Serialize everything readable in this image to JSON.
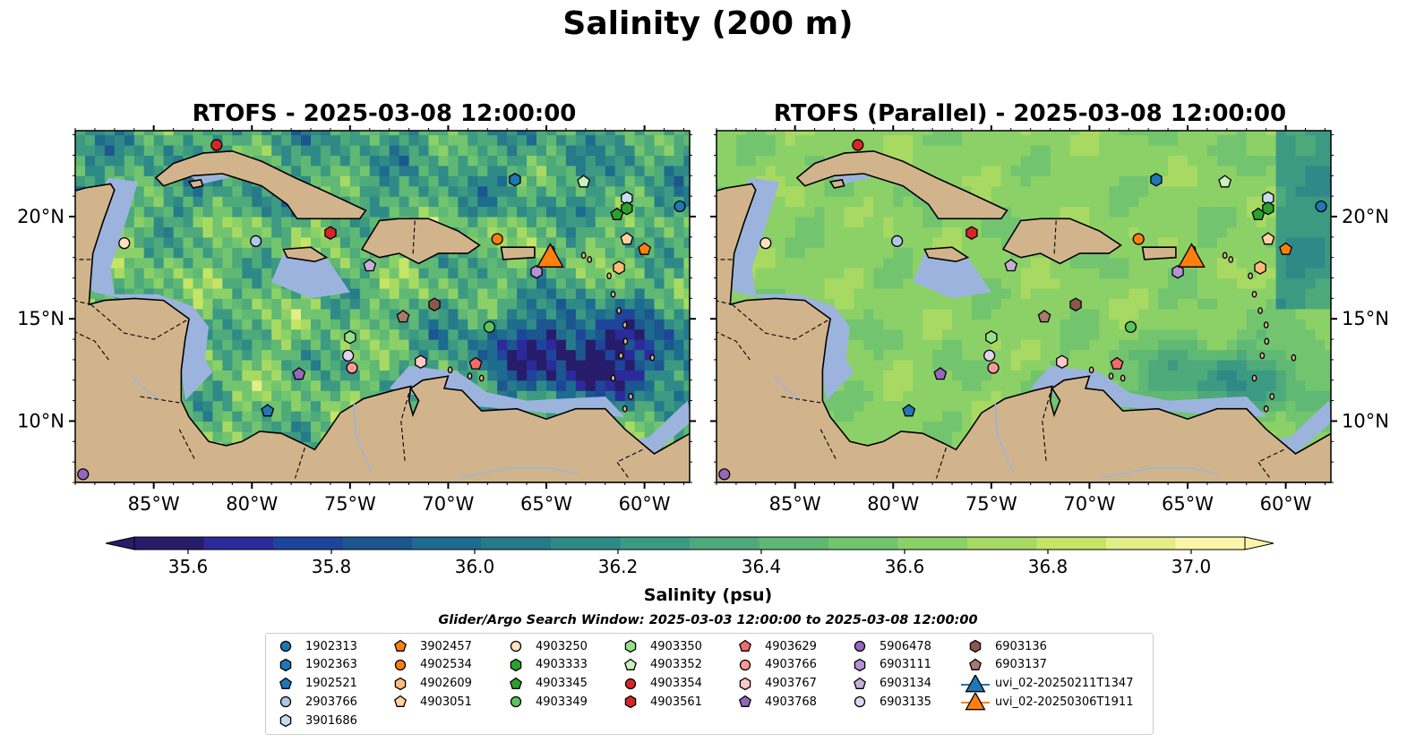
{
  "figure": {
    "suptitle": "Salinity (200 m)",
    "panels": [
      {
        "title": "RTOFS - 2025-03-08 12:00:00",
        "variant": "rtofs"
      },
      {
        "title": "RTOFS (Parallel) - 2025-03-08 12:00:00",
        "variant": "parallel"
      }
    ],
    "longitude_ticks": [
      "85°W",
      "80°W",
      "75°W",
      "70°W",
      "65°W",
      "60°W"
    ],
    "latitude_ticks": [
      "20°N",
      "15°N",
      "10°N"
    ],
    "colors": {
      "land": "#d2b48c",
      "shelf": "#9cb4dd",
      "coastline": "#000000",
      "borders": "#000000",
      "rivers": "#9cb4dd"
    }
  },
  "colorbar": {
    "label": "Salinity (psu)",
    "min": 35.6,
    "max": 37.0,
    "tick_labels": [
      "35.6",
      "35.8",
      "36.0",
      "36.2",
      "36.4",
      "36.6",
      "36.8",
      "37.0"
    ],
    "extend": "both",
    "colormap": [
      "#271c6a",
      "#2c2a9a",
      "#1f449b",
      "#1c568f",
      "#1d6c8f",
      "#267a8a",
      "#2f8a87",
      "#3c9a82",
      "#4ea97b",
      "#5fb874",
      "#72c56e",
      "#8cd167",
      "#a8da63",
      "#c6e466",
      "#e4ee88",
      "#fbf5a9"
    ]
  },
  "search_window": "Glider/Argo Search Window: 2025-03-03 12:00:00 to 2025-03-08 12:00:00",
  "legend": [
    {
      "label": "1902313",
      "marker": "circle",
      "color": "#1f77b4"
    },
    {
      "label": "1902363",
      "marker": "hexagon",
      "color": "#1f77b4"
    },
    {
      "label": "1902521",
      "marker": "pentagon",
      "color": "#1f77b4"
    },
    {
      "label": "2903766",
      "marker": "circle",
      "color": "#aec7e8"
    },
    {
      "label": "3901686",
      "marker": "hexagon",
      "color": "#c6dbef"
    },
    {
      "label": "3902457",
      "marker": "pentagon",
      "color": "#ff7f0e"
    },
    {
      "label": "4902534",
      "marker": "circle",
      "color": "#ff7f0e"
    },
    {
      "label": "4902609",
      "marker": "hexagon",
      "color": "#ffbb78"
    },
    {
      "label": "4903051",
      "marker": "pentagon",
      "color": "#ffd1a3"
    },
    {
      "label": "4903250",
      "marker": "circle",
      "color": "#ffe0c2"
    },
    {
      "label": "4903333",
      "marker": "hexagon",
      "color": "#2ca02c"
    },
    {
      "label": "4903345",
      "marker": "pentagon",
      "color": "#2ca02c"
    },
    {
      "label": "4903349",
      "marker": "circle",
      "color": "#5cc45c"
    },
    {
      "label": "4903350",
      "marker": "hexagon",
      "color": "#98df8a"
    },
    {
      "label": "4903352",
      "marker": "pentagon",
      "color": "#c7f0bd"
    },
    {
      "label": "4903354",
      "marker": "circle",
      "color": "#d62728"
    },
    {
      "label": "4903561",
      "marker": "hexagon",
      "color": "#d62728"
    },
    {
      "label": "4903629",
      "marker": "pentagon",
      "color": "#f26b6b"
    },
    {
      "label": "4903766",
      "marker": "circle",
      "color": "#ff9896"
    },
    {
      "label": "4903767",
      "marker": "hexagon",
      "color": "#ffc9c9"
    },
    {
      "label": "4903768",
      "marker": "pentagon",
      "color": "#9467bd"
    },
    {
      "label": "5906478",
      "marker": "circle",
      "color": "#9467bd"
    },
    {
      "label": "6903111",
      "marker": "hexagon",
      "color": "#b392d6"
    },
    {
      "label": "6903134",
      "marker": "pentagon",
      "color": "#c5b0d5"
    },
    {
      "label": "6903135",
      "marker": "circle",
      "color": "#e3d3f2"
    },
    {
      "label": "6903136",
      "marker": "hexagon",
      "color": "#8c564b"
    },
    {
      "label": "6903137",
      "marker": "pentagon",
      "color": "#a9786e"
    },
    {
      "label": "uvi_02-20250211T1347",
      "marker": "triangle",
      "color": "#1f77b4"
    },
    {
      "label": "uvi_02-20250306T1911",
      "marker": "triangle",
      "color": "#ff7f0e"
    }
  ],
  "platform_positions": [
    {
      "id": "1902313",
      "lon": -58.2,
      "lat": 20.5
    },
    {
      "id": "1902363",
      "lon": -66.6,
      "lat": 21.8
    },
    {
      "id": "1902521",
      "lon": -79.2,
      "lat": 10.5
    },
    {
      "id": "2903766",
      "lon": -79.8,
      "lat": 18.8
    },
    {
      "id": "3901686",
      "lon": -60.9,
      "lat": 20.9
    },
    {
      "id": "3902457",
      "lon": -60.0,
      "lat": 18.4
    },
    {
      "id": "4902534",
      "lon": -67.5,
      "lat": 18.9
    },
    {
      "id": "4902609",
      "lon": -61.3,
      "lat": 17.5
    },
    {
      "id": "4903051",
      "lon": -60.9,
      "lat": 18.9
    },
    {
      "id": "4903250",
      "lon": -86.5,
      "lat": 18.7
    },
    {
      "id": "4903333",
      "lon": -60.9,
      "lat": 20.4
    },
    {
      "id": "4903345",
      "lon": -61.4,
      "lat": 20.1
    },
    {
      "id": "4903349",
      "lon": -67.9,
      "lat": 14.6
    },
    {
      "id": "4903350",
      "lon": -75.0,
      "lat": 14.1
    },
    {
      "id": "4903352",
      "lon": -63.1,
      "lat": 21.7
    },
    {
      "id": "4903354",
      "lon": -81.8,
      "lat": 23.5
    },
    {
      "id": "4903561",
      "lon": -76.0,
      "lat": 19.2
    },
    {
      "id": "4903629",
      "lon": -68.6,
      "lat": 12.8
    },
    {
      "id": "4903766",
      "lon": -74.9,
      "lat": 12.6
    },
    {
      "id": "4903767",
      "lon": -71.4,
      "lat": 12.9
    },
    {
      "id": "4903768",
      "lon": -77.6,
      "lat": 12.3
    },
    {
      "id": "5906478",
      "lon": -88.6,
      "lat": 7.4
    },
    {
      "id": "6903111",
      "lon": -65.5,
      "lat": 17.3
    },
    {
      "id": "6903134",
      "lon": -74.0,
      "lat": 17.6
    },
    {
      "id": "6903135",
      "lon": -75.1,
      "lat": 13.2
    },
    {
      "id": "6903136",
      "lon": -70.7,
      "lat": 15.7
    },
    {
      "id": "6903137",
      "lon": -72.3,
      "lat": 15.1
    },
    {
      "id": "uvi_02-20250211T1347",
      "lon": -64.8,
      "lat": 18.0
    },
    {
      "id": "uvi_02-20250306T1911",
      "lon": -64.8,
      "lat": 18.0
    }
  ]
}
